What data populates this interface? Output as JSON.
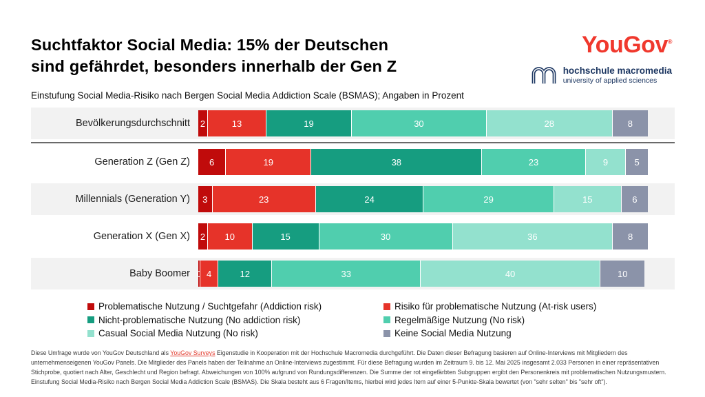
{
  "header": {
    "title_line1": "Suchtfaktor Social Media: 15% der Deutschen",
    "title_line2": "sind gefährdet, besonders innerhalb der Gen Z",
    "subtitle": "Einstufung Social Media-Risiko nach Bergen Social Media Addiction Scale (BSMAS); Angaben in Prozent"
  },
  "branding": {
    "yougov_logo_text": "YouGov",
    "yougov_registered_mark": "®",
    "yougov_color": "#f0382d",
    "macromedia_name": "hochschule macromedia",
    "macromedia_tagline": "university of applied sciences",
    "macromedia_color": "#1c3661"
  },
  "chart_data": {
    "type": "bar",
    "stacked": true,
    "orientation": "horizontal",
    "unit": "percent",
    "axis_range": [
      0,
      100
    ],
    "grid": false,
    "title": "Suchtfaktor Social Media: 15% der Deutschen sind gefährdet, besonders innerhalb der Gen Z",
    "subtitle": "Einstufung Social Media-Risiko nach Bergen Social Media Addiction Scale (BSMAS); Angaben in Prozent",
    "categories": [
      "Bevölkerungsdurchschnitt",
      "Generation Z (Gen Z)",
      "Millennials (Generation Y)",
      "Generation X (Gen X)",
      "Baby Boomer"
    ],
    "series": [
      {
        "name": "Problematische Nutzung / Suchtgefahr (Addiction risk)",
        "color": "#c00b0b",
        "values": [
          2,
          6,
          3,
          2,
          0
        ]
      },
      {
        "name": "Risiko für problematische Nutzung (At-risk users)",
        "color": "#e63329",
        "values": [
          13,
          19,
          23,
          10,
          4
        ]
      },
      {
        "name": "Nicht-problematische Nutzung (No addiction risk)",
        "color": "#169d80",
        "values": [
          19,
          38,
          24,
          15,
          12
        ]
      },
      {
        "name": "Regelmäßige Nutzung (No risk)",
        "color": "#50ceae",
        "values": [
          30,
          23,
          29,
          30,
          33
        ]
      },
      {
        "name": "Casual Social Media Nutzung (No risk)",
        "color": "#93e1ce",
        "values": [
          28,
          9,
          15,
          36,
          40
        ]
      },
      {
        "name": "Keine Social Media Nutzung",
        "color": "#8b93a9",
        "values": [
          8,
          5,
          6,
          8,
          10
        ]
      }
    ],
    "legend_position": "bottom"
  },
  "legend": {
    "items": [
      {
        "label": "Problematische Nutzung / Suchtgefahr (Addiction risk)",
        "color": "#c00b0b"
      },
      {
        "label": "Nicht-problematische Nutzung (No addiction risk)",
        "color": "#169d80"
      },
      {
        "label": "Casual Social Media Nutzung (No risk)",
        "color": "#93e1ce"
      },
      {
        "label": "Risiko für problematische Nutzung (At-risk users)",
        "color": "#e63329"
      },
      {
        "label": "Regelmäßige Nutzung (No risk)",
        "color": "#50ceae"
      },
      {
        "label": "Keine Social Media Nutzung",
        "color": "#8b93a9"
      }
    ]
  },
  "footer": {
    "pre_link": "Diese Umfrage wurde von YouGov Deutschland als ",
    "link": "YouGov Surveys",
    "link_color": "#e23b2e",
    "post_link": " Eigenstudie in Kooperation mit der Hochschule Macromedia durchgeführt. Die Daten dieser Befragung basieren auf Online-Interviews mit Mitgliedern des unternehmenseigenen YouGov Panels. Die Mitglieder des Panels haben der Teilnahme an Online-Interviews zugestimmt. Für diese Befragung wurden im Zeitraum 9. bis 12. Mai 2025 insgesamt 2.033 Personen in einer repräsentativen Stichprobe, quotiert nach Alter, Geschlecht und Region befragt. Abweichungen von 100% aufgrund von Rundungsdifferenzen. Die Summe der rot eingefärbten Subgruppen ergibt den Personenkreis mit problematischen Nutzungsmustern. Einstufung Social Media-Risiko nach Bergen Social Media Addiction Scale (BSMAS). Die Skala besteht aus 6 Fragen/Items, hierbei wird jedes Item auf einer 5-Punkte-Skala bewertet (von \"sehr selten\" bis \"sehr oft\")."
  }
}
